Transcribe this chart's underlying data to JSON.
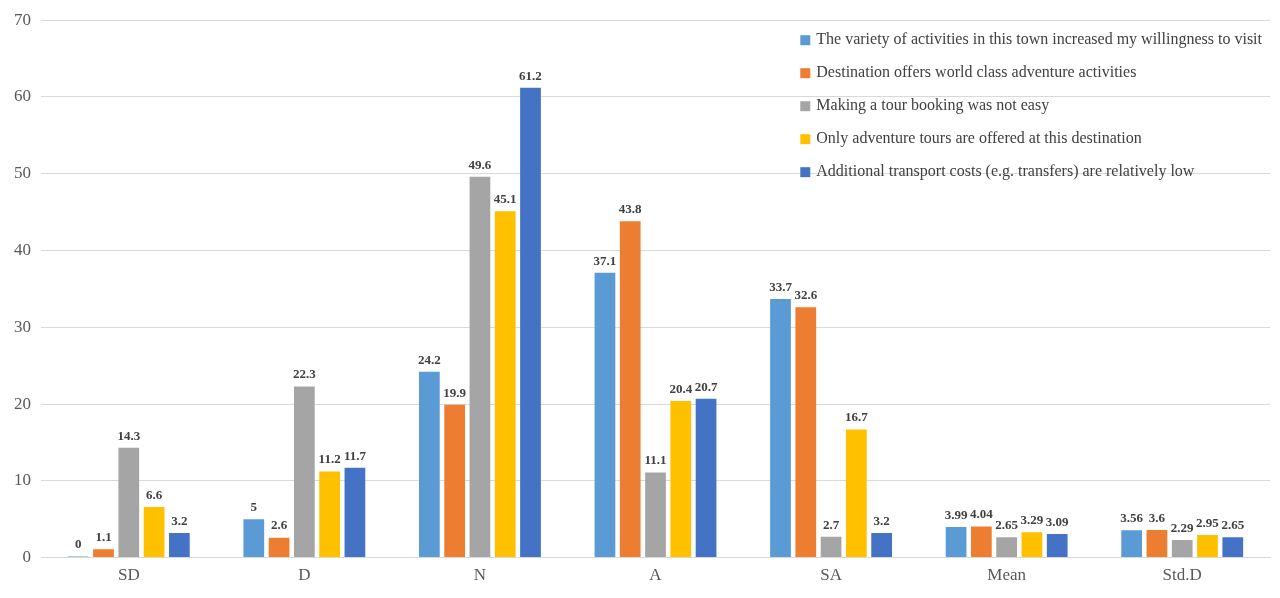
{
  "chart_data": {
    "type": "bar",
    "categories": [
      "SD",
      "D",
      "N",
      "A",
      "SA",
      "Mean",
      "Std.D"
    ],
    "series": [
      {
        "name": "The variety of activities in this town increased my willingness to visit",
        "color": "#5b9bd5",
        "values": [
          0,
          5,
          24.2,
          37.1,
          33.7,
          3.99,
          3.56
        ]
      },
      {
        "name": "Destination offers world class adventure activities",
        "color": "#ed7d31",
        "values": [
          1.1,
          2.6,
          19.9,
          43.8,
          32.6,
          4.04,
          3.6
        ]
      },
      {
        "name": "Making a tour booking was not easy",
        "color": "#a5a5a5",
        "values": [
          14.3,
          22.3,
          49.6,
          11.1,
          2.7,
          2.65,
          2.29
        ]
      },
      {
        "name": "Only adventure tours are offered at this destination",
        "color": "#ffc000",
        "values": [
          6.6,
          11.2,
          45.1,
          20.4,
          16.7,
          3.29,
          2.95
        ]
      },
      {
        "name": "Additional transport costs (e.g. transfers) are relatively low",
        "color": "#4472c4",
        "values": [
          3.2,
          11.7,
          61.2,
          20.7,
          3.2,
          3.09,
          2.65
        ]
      }
    ],
    "ylim": [
      0,
      70
    ],
    "yticks": [
      0,
      10,
      20,
      30,
      40,
      50,
      60,
      70
    ],
    "grid": "y",
    "legend": "top right",
    "data_labels": true
  }
}
